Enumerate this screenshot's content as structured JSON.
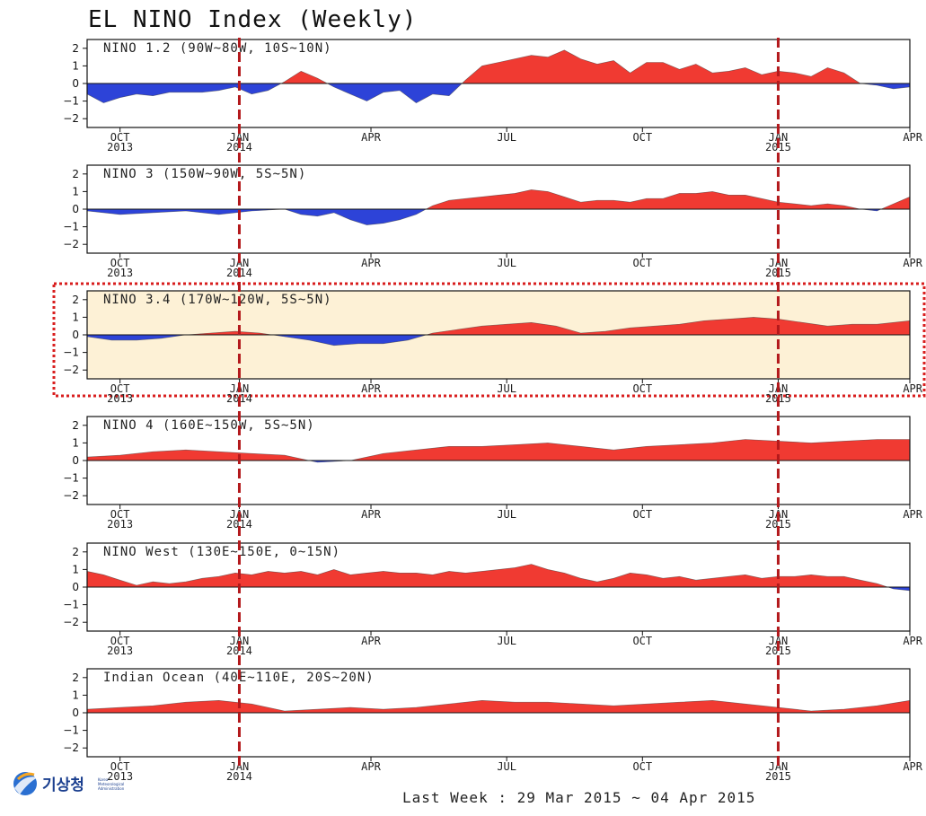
{
  "title": "EL NINO Index (Weekly)",
  "footer": "Last Week : 29 Mar 2015 ~ 04 Apr 2015",
  "logo": {
    "text": "기상청",
    "subtext": [
      "Korea",
      "Meteorological",
      "Administration"
    ]
  },
  "colors": {
    "positive": "#f03a32",
    "negative": "#2d43d8",
    "highlight_fill": "#fdf1d6",
    "highlight_border": "#d81e1e",
    "vline": "#b3191c"
  },
  "chart_data": [
    {
      "type": "area",
      "title": "NINO 1.2 (90W~80W, 10S~10N)",
      "ylim": [
        -2.5,
        2.5
      ],
      "yticks": [
        2,
        1,
        0,
        -1,
        -2
      ],
      "xticks": [
        "OCT\n2013",
        "JAN\n2014",
        "APR",
        "JUL",
        "OCT",
        "JAN\n2015",
        "APR"
      ],
      "x": [
        0,
        0.02,
        0.04,
        0.06,
        0.08,
        0.1,
        0.12,
        0.14,
        0.16,
        0.18,
        0.2,
        0.22,
        0.24,
        0.26,
        0.28,
        0.3,
        0.32,
        0.34,
        0.36,
        0.38,
        0.4,
        0.42,
        0.44,
        0.46,
        0.48,
        0.5,
        0.52,
        0.54,
        0.56,
        0.58,
        0.6,
        0.62,
        0.64,
        0.66,
        0.68,
        0.7,
        0.72,
        0.74,
        0.76,
        0.78,
        0.8,
        0.82,
        0.84,
        0.86,
        0.88,
        0.9,
        0.92,
        0.94,
        0.96,
        0.98,
        1
      ],
      "values": [
        -0.6,
        -1.1,
        -0.8,
        -0.6,
        -0.7,
        -0.5,
        -0.5,
        -0.5,
        -0.4,
        -0.2,
        -0.6,
        -0.4,
        0.1,
        0.7,
        0.3,
        -0.2,
        -0.6,
        -1.0,
        -0.5,
        -0.4,
        -1.1,
        -0.6,
        -0.7,
        0.2,
        1.0,
        1.2,
        1.4,
        1.6,
        1.5,
        1.9,
        1.4,
        1.1,
        1.3,
        0.6,
        1.2,
        1.2,
        0.8,
        1.1,
        0.6,
        0.7,
        0.9,
        0.5,
        0.7,
        0.6,
        0.4,
        0.9,
        0.6,
        0.0,
        -0.1,
        -0.3,
        -0.2
      ]
    },
    {
      "type": "area",
      "title": "NINO 3 (150W~90W, 5S~5N)",
      "ylim": [
        -2.5,
        2.5
      ],
      "yticks": [
        2,
        1,
        0,
        -1,
        -2
      ],
      "xticks": [
        "OCT\n2013",
        "JAN\n2014",
        "APR",
        "JUL",
        "OCT",
        "JAN\n2015",
        "APR"
      ],
      "x": [
        0,
        0.04,
        0.08,
        0.12,
        0.16,
        0.2,
        0.24,
        0.26,
        0.28,
        0.3,
        0.32,
        0.34,
        0.36,
        0.38,
        0.4,
        0.42,
        0.44,
        0.46,
        0.48,
        0.5,
        0.52,
        0.54,
        0.56,
        0.58,
        0.6,
        0.62,
        0.64,
        0.66,
        0.68,
        0.7,
        0.72,
        0.74,
        0.76,
        0.78,
        0.8,
        0.82,
        0.84,
        0.86,
        0.88,
        0.9,
        0.92,
        0.94,
        0.96,
        0.98,
        1
      ],
      "values": [
        -0.1,
        -0.3,
        -0.2,
        -0.1,
        -0.3,
        -0.1,
        0.0,
        -0.3,
        -0.4,
        -0.2,
        -0.6,
        -0.9,
        -0.8,
        -0.6,
        -0.3,
        0.2,
        0.5,
        0.6,
        0.7,
        0.8,
        0.9,
        1.1,
        1.0,
        0.7,
        0.4,
        0.5,
        0.5,
        0.4,
        0.6,
        0.6,
        0.9,
        0.9,
        1.0,
        0.8,
        0.8,
        0.6,
        0.4,
        0.3,
        0.2,
        0.3,
        0.2,
        0.0,
        -0.1,
        0.3,
        0.7
      ]
    },
    {
      "type": "area",
      "title": "NINO 3.4 (170W~120W, 5S~5N)",
      "ylim": [
        -2.5,
        2.5
      ],
      "yticks": [
        2,
        1,
        0,
        -1,
        -2
      ],
      "xticks": [
        "OCT\n2013",
        "JAN\n2014",
        "APR",
        "JUL",
        "OCT",
        "JAN\n2015",
        "APR"
      ],
      "x": [
        0,
        0.03,
        0.06,
        0.09,
        0.12,
        0.15,
        0.18,
        0.21,
        0.24,
        0.27,
        0.3,
        0.33,
        0.36,
        0.39,
        0.42,
        0.45,
        0.48,
        0.51,
        0.54,
        0.57,
        0.6,
        0.63,
        0.66,
        0.69,
        0.72,
        0.75,
        0.78,
        0.81,
        0.84,
        0.87,
        0.9,
        0.93,
        0.96,
        1
      ],
      "values": [
        -0.1,
        -0.3,
        -0.3,
        -0.2,
        0.0,
        0.1,
        0.2,
        0.1,
        -0.1,
        -0.3,
        -0.6,
        -0.5,
        -0.5,
        -0.3,
        0.1,
        0.3,
        0.5,
        0.6,
        0.7,
        0.5,
        0.1,
        0.2,
        0.4,
        0.5,
        0.6,
        0.8,
        0.9,
        1.0,
        0.9,
        0.7,
        0.5,
        0.6,
        0.6,
        0.8
      ]
    },
    {
      "type": "area",
      "title": "NINO 4 (160E~150W, 5S~5N)",
      "ylim": [
        -2.5,
        2.5
      ],
      "yticks": [
        2,
        1,
        0,
        -1,
        -2
      ],
      "xticks": [
        "OCT\n2013",
        "JAN\n2014",
        "APR",
        "JUL",
        "OCT",
        "JAN\n2015",
        "APR"
      ],
      "x": [
        0,
        0.04,
        0.08,
        0.12,
        0.16,
        0.2,
        0.24,
        0.28,
        0.32,
        0.36,
        0.4,
        0.44,
        0.48,
        0.52,
        0.56,
        0.6,
        0.64,
        0.68,
        0.72,
        0.76,
        0.8,
        0.84,
        0.88,
        0.92,
        0.96,
        1
      ],
      "values": [
        0.2,
        0.3,
        0.5,
        0.6,
        0.5,
        0.4,
        0.3,
        -0.1,
        0.0,
        0.4,
        0.6,
        0.8,
        0.8,
        0.9,
        1.0,
        0.8,
        0.6,
        0.8,
        0.9,
        1.0,
        1.2,
        1.1,
        1.0,
        1.1,
        1.2,
        1.2
      ]
    },
    {
      "type": "area",
      "title": "NINO West (130E~150E, 0~15N)",
      "ylim": [
        -2.5,
        2.5
      ],
      "yticks": [
        2,
        1,
        0,
        -1,
        -2
      ],
      "xticks": [
        "OCT\n2013",
        "JAN\n2014",
        "APR",
        "JUL",
        "OCT",
        "JAN\n2015",
        "APR"
      ],
      "x": [
        0,
        0.02,
        0.04,
        0.06,
        0.08,
        0.1,
        0.12,
        0.14,
        0.16,
        0.18,
        0.2,
        0.22,
        0.24,
        0.26,
        0.28,
        0.3,
        0.32,
        0.34,
        0.36,
        0.38,
        0.4,
        0.42,
        0.44,
        0.46,
        0.48,
        0.5,
        0.52,
        0.54,
        0.56,
        0.58,
        0.6,
        0.62,
        0.64,
        0.66,
        0.68,
        0.7,
        0.72,
        0.74,
        0.76,
        0.78,
        0.8,
        0.82,
        0.84,
        0.86,
        0.88,
        0.9,
        0.92,
        0.94,
        0.96,
        0.98,
        1
      ],
      "values": [
        0.9,
        0.7,
        0.4,
        0.1,
        0.3,
        0.2,
        0.3,
        0.5,
        0.6,
        0.8,
        0.7,
        0.9,
        0.8,
        0.9,
        0.7,
        1.0,
        0.7,
        0.8,
        0.9,
        0.8,
        0.8,
        0.7,
        0.9,
        0.8,
        0.9,
        1.0,
        1.1,
        1.3,
        1.0,
        0.8,
        0.5,
        0.3,
        0.5,
        0.8,
        0.7,
        0.5,
        0.6,
        0.4,
        0.5,
        0.6,
        0.7,
        0.5,
        0.6,
        0.6,
        0.7,
        0.6,
        0.6,
        0.4,
        0.2,
        -0.1,
        -0.2
      ]
    },
    {
      "type": "area",
      "title": "Indian Ocean (40E~110E, 20S~20N)",
      "ylim": [
        -2.5,
        2.5
      ],
      "yticks": [
        2,
        1,
        0,
        -1,
        -2
      ],
      "xticks": [
        "OCT\n2013",
        "JAN\n2014",
        "APR",
        "JUL",
        "OCT",
        "JAN\n2015",
        "APR"
      ],
      "x": [
        0,
        0.04,
        0.08,
        0.12,
        0.16,
        0.2,
        0.24,
        0.28,
        0.32,
        0.36,
        0.4,
        0.44,
        0.48,
        0.52,
        0.56,
        0.6,
        0.64,
        0.68,
        0.72,
        0.76,
        0.8,
        0.84,
        0.88,
        0.92,
        0.96,
        1
      ],
      "values": [
        0.2,
        0.3,
        0.4,
        0.6,
        0.7,
        0.5,
        0.1,
        0.2,
        0.3,
        0.2,
        0.3,
        0.5,
        0.7,
        0.6,
        0.6,
        0.5,
        0.4,
        0.5,
        0.6,
        0.7,
        0.5,
        0.3,
        0.1,
        0.2,
        0.4,
        0.7
      ]
    }
  ]
}
